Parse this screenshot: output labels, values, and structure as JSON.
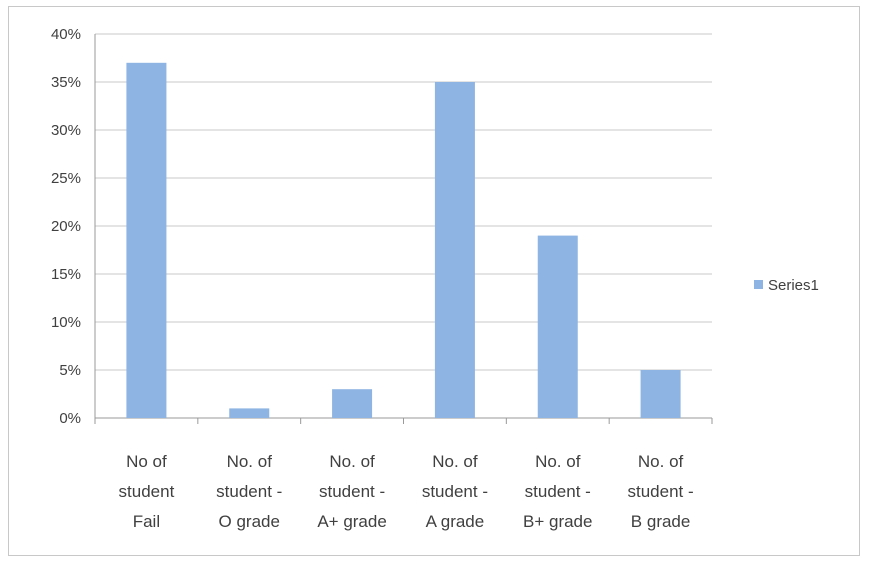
{
  "chart_data": {
    "type": "bar",
    "categories": [
      [
        "No of",
        "student",
        "Fail"
      ],
      [
        "No. of",
        "student -",
        "O grade"
      ],
      [
        "No. of",
        "student -",
        "A+ grade"
      ],
      [
        "No. of",
        "student -",
        "A grade"
      ],
      [
        "No. of",
        "student -",
        "B+ grade"
      ],
      [
        "No. of",
        "student -",
        "B grade"
      ]
    ],
    "series": [
      {
        "name": "Series1",
        "values": [
          37,
          1,
          3,
          35,
          19,
          5
        ],
        "color": "#8db4e2"
      }
    ],
    "ylim": [
      0,
      40
    ],
    "yticks": [
      0,
      5,
      10,
      15,
      20,
      25,
      30,
      35,
      40
    ],
    "ytick_format": "percent",
    "grid": true,
    "legend": "right"
  }
}
